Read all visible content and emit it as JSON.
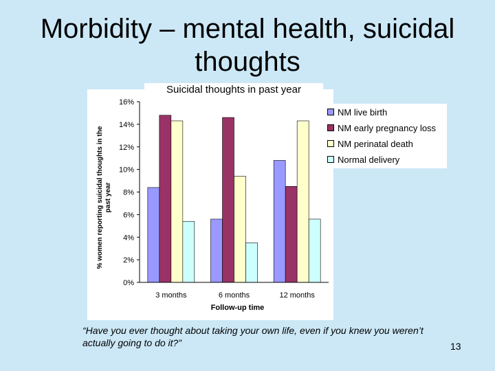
{
  "slide": {
    "title": "Morbidity – mental health, suicidal thoughts",
    "quote": "“Have you ever thought about taking your own life, even if you knew you weren’t actually going to do it?”",
    "page_number": "13"
  },
  "chart_data": {
    "type": "bar",
    "title": "Suicidal thoughts in past year",
    "xlabel": "Follow-up time",
    "ylabel": "% women reporting suicidal thoughts in the past year",
    "ylim": [
      0,
      16
    ],
    "yticks": [
      "0%",
      "2%",
      "4%",
      "6%",
      "8%",
      "10%",
      "12%",
      "14%",
      "16%"
    ],
    "categories": [
      "3 months",
      "6 months",
      "12 months"
    ],
    "legend_position": "top-right",
    "series": [
      {
        "name": "NM live birth",
        "color": "#9999ff",
        "values": [
          8.4,
          5.6,
          10.8
        ]
      },
      {
        "name": "NM early pregnancy loss",
        "color": "#993366",
        "values": [
          14.8,
          14.6,
          8.5
        ]
      },
      {
        "name": "NM perinatal death",
        "color": "#ffffcc",
        "values": [
          14.3,
          9.4,
          14.3
        ]
      },
      {
        "name": "Normal delivery",
        "color": "#ccffff",
        "values": [
          5.4,
          3.5,
          5.6
        ]
      }
    ]
  }
}
